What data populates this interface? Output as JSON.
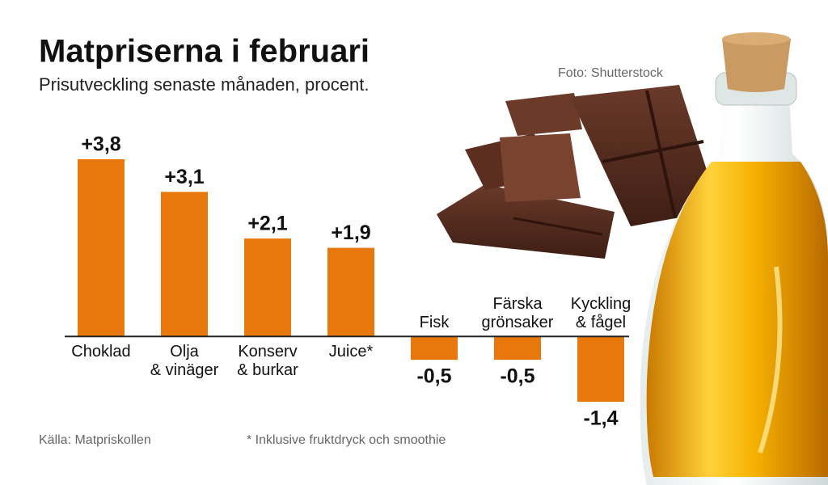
{
  "title": "Matpriserna i februari",
  "subtitle": "Prisutveckling senaste månaden, procent.",
  "photo_credit": "Foto: Shutterstock",
  "source": "Källa: Matpriskollen",
  "footnote": "* Inklusive fruktdryck och smoothie",
  "chart_data": {
    "type": "bar",
    "categories": [
      [
        "Choklad"
      ],
      [
        "Olja",
        "& vinäger"
      ],
      [
        "Konserv",
        "& burkar"
      ],
      [
        "Juice*"
      ],
      [
        "Fisk"
      ],
      [
        "Färska",
        "grönsaker"
      ],
      [
        "Kyckling",
        "& fågel"
      ]
    ],
    "values": [
      3.8,
      3.1,
      2.1,
      1.9,
      -0.5,
      -0.5,
      -1.4
    ],
    "value_labels": [
      "+3,8",
      "+3,1",
      "+2,1",
      "+1,9",
      "-0,5",
      "-0,5",
      "-1,4"
    ],
    "color": "#e8780c"
  }
}
